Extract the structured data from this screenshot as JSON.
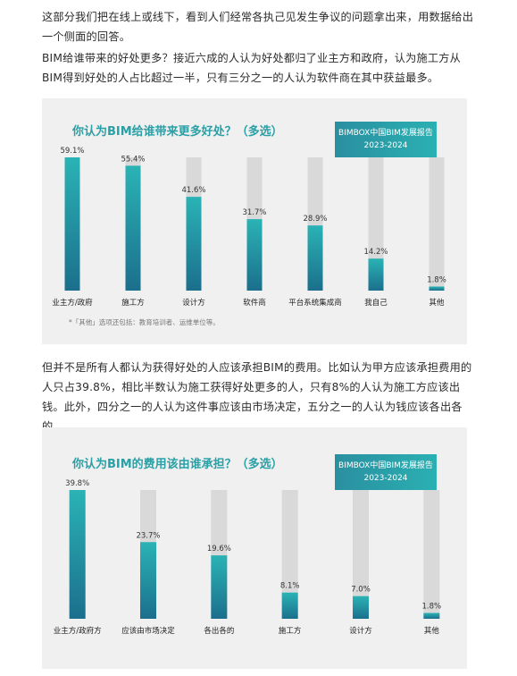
{
  "paragraphs": {
    "p1": "这部分我们把在线上或线下，看到人们经常各执己见发生争议的问题拿出来，用数据给出一个侧面的回答。",
    "p2": "BIM给谁带来的好处更多？接近六成的人认为好处都归了业主方和政府，认为施工方从BIM得到好处的人占比超过一半，只有三分之一的人认为软件商在其中获益最多。",
    "p3": "但并不是所有人都认为获得好处的人应该承担BIM的费用。比如认为甲方应该承担费用的人只占39.8%，相比半数认为施工获得好处更多的人，只有8%的人认为施工方应该出钱。此外，四分之一的人认为这件事应该由市场决定，五分之一的人认为钱应该各出各的。"
  },
  "badge": {
    "line1": "BIMBOX中国BIM发展报告",
    "line2": "2023-2024"
  },
  "chart1_title": "你认为BIM给谁带来更多好处？（多选）",
  "chart1_note": "*「其他」选项还包括：教育培训者、运维单位等。",
  "chart2_title": "你认为BIM的费用该由谁承担？（多选）",
  "colors": {
    "bar_top": "#2ab3b5",
    "bar_bottom": "#1b6f8c",
    "track": "#d9d9d9",
    "title": "#2aa0a6"
  },
  "chart_data": [
    {
      "type": "bar",
      "title": "你认为BIM给谁带来更多好处？（多选）",
      "categories": [
        "业主方/政府",
        "施工方",
        "设计方",
        "软件商",
        "平台系统集成商",
        "我自己",
        "其他"
      ],
      "values": [
        59.1,
        55.4,
        41.6,
        31.7,
        28.9,
        14.2,
        1.8
      ],
      "value_labels": [
        "59.1%",
        "55.4%",
        "41.6%",
        "31.7%",
        "28.9%",
        "14.2%",
        "1.8%"
      ],
      "ylim": [
        0,
        59.1
      ]
    },
    {
      "type": "bar",
      "title": "你认为BIM的费用该由谁承担？（多选）",
      "categories": [
        "业主方/政府方",
        "应该由市场决定",
        "各出各的",
        "施工方",
        "设计方",
        "其他"
      ],
      "values": [
        39.8,
        23.7,
        19.6,
        8.1,
        7.0,
        1.8
      ],
      "value_labels": [
        "39.8%",
        "23.7%",
        "19.6%",
        "8.1%",
        "7.0%",
        "1.8%"
      ],
      "ylim": [
        0,
        39.8
      ]
    }
  ]
}
